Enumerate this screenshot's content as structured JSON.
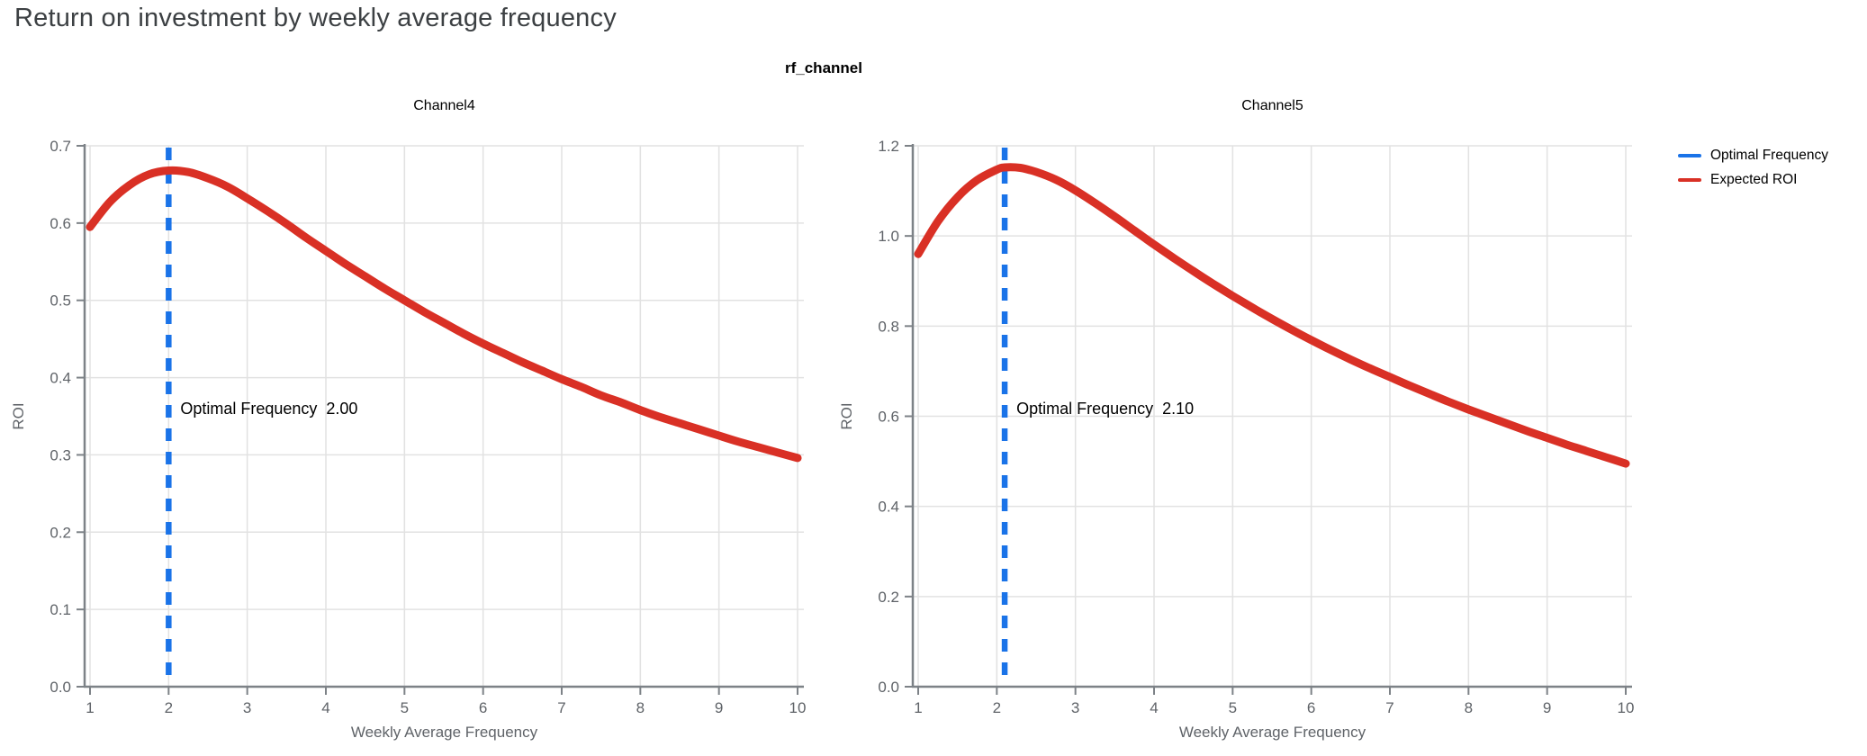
{
  "page": {
    "title": "Return on investment by weekly average frequency"
  },
  "figure": {
    "suptitle": "rf_channel",
    "legend": {
      "position": "top-right",
      "items": [
        {
          "label": "Optimal Frequency",
          "color": "#1a73e8"
        },
        {
          "label": "Expected ROI",
          "color": "#d93025"
        }
      ]
    }
  },
  "colors": {
    "page_title": "#3c4043",
    "axis_spine": "#7d8287",
    "tick_label": "#5f6368",
    "grid": "#e2e2e2",
    "optimal_line": "#1a73e8",
    "roi_line": "#d93025",
    "annotation_text": "#000000"
  },
  "chart_data": [
    {
      "type": "line",
      "title": "Channel4",
      "xlabel": "Weekly Average Frequency",
      "ylabel": "ROI",
      "grid": true,
      "xlim": [
        0.95,
        10.1
      ],
      "ylim": [
        0.0,
        0.7
      ],
      "x_ticks": [
        1,
        2,
        3,
        4,
        5,
        6,
        7,
        8,
        9,
        10
      ],
      "y_ticks": [
        0.0,
        0.1,
        0.2,
        0.3,
        0.4,
        0.5,
        0.6,
        0.7
      ],
      "optimal_frequency": 2.0,
      "annotation": {
        "label": "Optimal Frequency",
        "value": "2.00"
      },
      "series": [
        {
          "name": "Expected ROI",
          "points": [
            [
              1,
              0.595
            ],
            [
              1.25,
              0.627
            ],
            [
              1.5,
              0.649
            ],
            [
              1.75,
              0.663
            ],
            [
              2,
              0.668
            ],
            [
              2.25,
              0.666
            ],
            [
              2.5,
              0.658
            ],
            [
              2.75,
              0.647
            ],
            [
              3,
              0.632
            ],
            [
              3.25,
              0.616
            ],
            [
              3.5,
              0.599
            ],
            [
              3.75,
              0.581
            ],
            [
              4,
              0.564
            ],
            [
              4.25,
              0.547
            ],
            [
              4.5,
              0.531
            ],
            [
              4.75,
              0.515
            ],
            [
              5,
              0.5
            ],
            [
              5.25,
              0.485
            ],
            [
              5.5,
              0.471
            ],
            [
              5.75,
              0.457
            ],
            [
              6,
              0.444
            ],
            [
              6.25,
              0.432
            ],
            [
              6.5,
              0.42
            ],
            [
              6.75,
              0.409
            ],
            [
              7,
              0.398
            ],
            [
              7.25,
              0.388
            ],
            [
              7.5,
              0.377
            ],
            [
              7.75,
              0.368
            ],
            [
              8,
              0.358
            ],
            [
              8.25,
              0.349
            ],
            [
              8.5,
              0.341
            ],
            [
              8.75,
              0.333
            ],
            [
              9,
              0.325
            ],
            [
              9.25,
              0.317
            ],
            [
              9.5,
              0.31
            ],
            [
              9.75,
              0.303
            ],
            [
              10,
              0.296
            ]
          ]
        }
      ]
    },
    {
      "type": "line",
      "title": "Channel5",
      "xlabel": "Weekly Average Frequency",
      "ylabel": "ROI",
      "grid": true,
      "xlim": [
        0.95,
        10.1
      ],
      "ylim": [
        0.0,
        1.2
      ],
      "x_ticks": [
        1,
        2,
        3,
        4,
        5,
        6,
        7,
        8,
        9,
        10
      ],
      "y_ticks": [
        0.0,
        0.2,
        0.4,
        0.6,
        0.8,
        1.0,
        1.2
      ],
      "optimal_frequency": 2.1,
      "annotation": {
        "label": "Optimal Frequency",
        "value": "2.10"
      },
      "series": [
        {
          "name": "Expected ROI",
          "points": [
            [
              1,
              0.96
            ],
            [
              1.25,
              1.032
            ],
            [
              1.5,
              1.086
            ],
            [
              1.75,
              1.124
            ],
            [
              2,
              1.147
            ],
            [
              2.1,
              1.152
            ],
            [
              2.3,
              1.151
            ],
            [
              2.5,
              1.142
            ],
            [
              2.75,
              1.125
            ],
            [
              3,
              1.101
            ],
            [
              3.25,
              1.073
            ],
            [
              3.5,
              1.043
            ],
            [
              3.75,
              1.012
            ],
            [
              4,
              0.981
            ],
            [
              4.25,
              0.951
            ],
            [
              4.5,
              0.922
            ],
            [
              4.75,
              0.894
            ],
            [
              5,
              0.867
            ],
            [
              5.25,
              0.841
            ],
            [
              5.5,
              0.816
            ],
            [
              5.75,
              0.792
            ],
            [
              6,
              0.769
            ],
            [
              6.25,
              0.747
            ],
            [
              6.5,
              0.726
            ],
            [
              6.75,
              0.706
            ],
            [
              7,
              0.687
            ],
            [
              7.25,
              0.668
            ],
            [
              7.5,
              0.65
            ],
            [
              7.75,
              0.632
            ],
            [
              8,
              0.615
            ],
            [
              8.25,
              0.599
            ],
            [
              8.5,
              0.583
            ],
            [
              8.75,
              0.567
            ],
            [
              9,
              0.552
            ],
            [
              9.25,
              0.537
            ],
            [
              9.5,
              0.523
            ],
            [
              9.75,
              0.509
            ],
            [
              10,
              0.495
            ]
          ]
        }
      ]
    }
  ]
}
